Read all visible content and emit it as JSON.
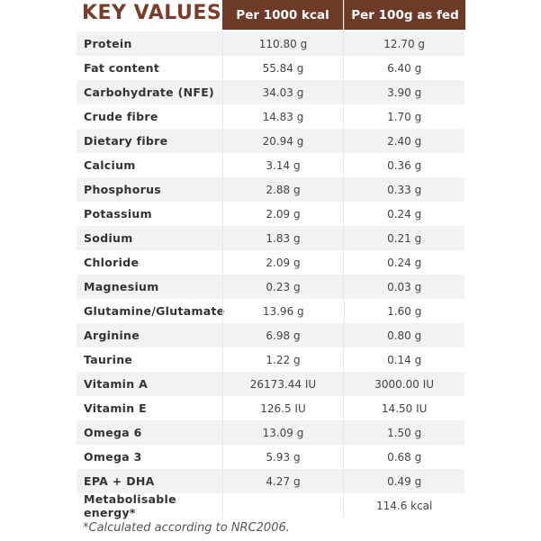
{
  "title": "KEY VALUES",
  "headers": [
    "Per 1000 kcal",
    "Per 100g as fed"
  ],
  "rows": [
    [
      "Protein",
      "110.80 g",
      "12.70 g"
    ],
    [
      "Fat content",
      "55.84 g",
      "6.40 g"
    ],
    [
      "Carbohydrate (NFE)",
      "34.03 g",
      "3.90 g"
    ],
    [
      "Crude fibre",
      "14.83 g",
      "1.70 g"
    ],
    [
      "Dietary fibre",
      "20.94 g",
      "2.40 g"
    ],
    [
      "Calcium",
      "3.14 g",
      "0.36 g"
    ],
    [
      "Phosphorus",
      "2.88 g",
      "0.33 g"
    ],
    [
      "Potassium",
      "2.09 g",
      "0.24 g"
    ],
    [
      "Sodium",
      "1.83 g",
      "0.21 g"
    ],
    [
      "Chloride",
      "2.09 g",
      "0.24 g"
    ],
    [
      "Magnesium",
      "0.23 g",
      "0.03 g"
    ],
    [
      "Glutamine/Glutamate",
      "13.96 g",
      "1.60 g"
    ],
    [
      "Arginine",
      "6.98 g",
      "0.80 g"
    ],
    [
      "Taurine",
      "1.22 g",
      "0.14 g"
    ],
    [
      "Vitamin A",
      "26173.44 IU",
      "3000.00 IU"
    ],
    [
      "Vitamin E",
      "126.5 IU",
      "14.50 IU"
    ],
    [
      "Omega 6",
      "13.09 g",
      "1.50 g"
    ],
    [
      "Omega 3",
      "5.93 g",
      "0.68 g"
    ],
    [
      "EPA + DHA",
      "4.27 g",
      "0.49 g"
    ],
    [
      "Metabolisable energy*",
      "",
      "114.6 kcal"
    ]
  ],
  "footnote": "*Calculated according to NRC2006."
}
